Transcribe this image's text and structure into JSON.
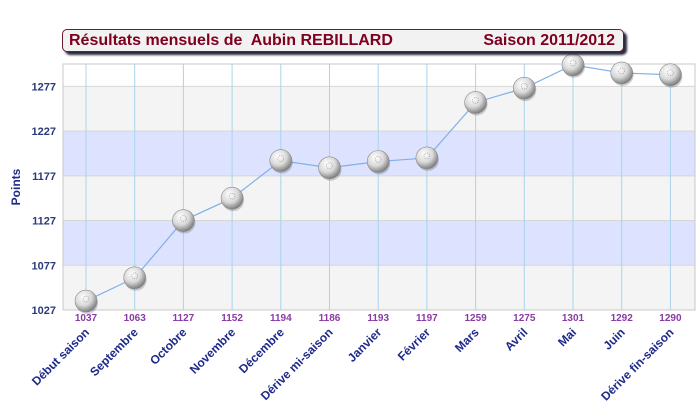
{
  "title": {
    "left": "Résultats mensuels de  Aubin REBILLARD",
    "right": "Saison 2011/2012"
  },
  "colors": {
    "title": "#800020",
    "band_blue": "#dde3ff",
    "band_grey": "#f4f4f4",
    "line": "#7fb0e8",
    "axis_text": "#1e2a8a",
    "data_label": "#8a3aa6"
  },
  "chart_data": {
    "type": "line",
    "categories": [
      "Début saison",
      "Septembre",
      "Octobre",
      "Novembre",
      "Décembre",
      "Dérive mi-saison",
      "Janvier",
      "Février",
      "Mars",
      "Avril",
      "Mai",
      "Juin",
      "Dérive fin-saison"
    ],
    "values": [
      1037,
      1063,
      1127,
      1152,
      1194,
      1186,
      1193,
      1197,
      1259,
      1275,
      1301,
      1292,
      1290
    ],
    "ylabel": "Points",
    "yticks": [
      1027,
      1077,
      1127,
      1177,
      1227,
      1277
    ],
    "ylim": [
      1027,
      1302
    ],
    "marker": "ball",
    "grid": true
  }
}
